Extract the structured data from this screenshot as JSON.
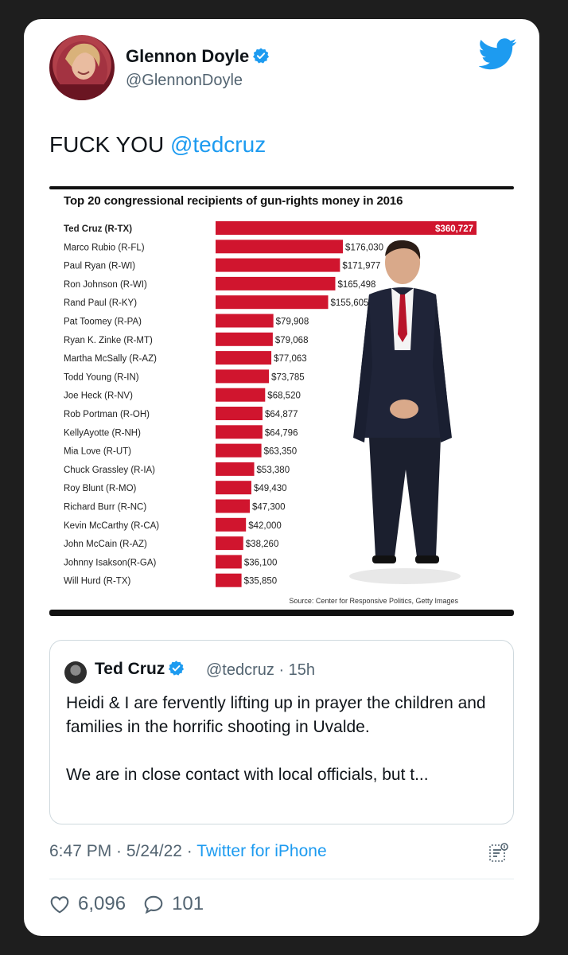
{
  "author": {
    "name": "Glennon Doyle",
    "handle": "@GlennonDoyle"
  },
  "tweet": {
    "text_prefix": "FUCK YOU ",
    "mention": "@tedcruz"
  },
  "chart_data": {
    "type": "bar",
    "orientation": "horizontal",
    "title": "Top 20 congressional recipients of gun-rights money in 2016",
    "source": "Source: Center for Responsive Politics, Getty Images",
    "categories": [
      "Ted Cruz (R-TX)",
      "Marco Rubio (R-FL)",
      "Paul Ryan (R-WI)",
      "Ron Johnson (R-WI)",
      "Rand Paul (R-KY)",
      "Pat Toomey (R-PA)",
      "Ryan K. Zinke (R-MT)",
      "Martha McSally (R-AZ)",
      "Todd Young (R-IN)",
      "Joe Heck (R-NV)",
      "Rob Portman (R-OH)",
      "KellyAyotte (R-NH)",
      "Mia Love (R-UT)",
      "Chuck Grassley (R-IA)",
      "Roy Blunt (R-MO)",
      "Richard Burr (R-NC)",
      "Kevin McCarthy (R-CA)",
      "John McCain (R-AZ)",
      "Johnny Isakson(R-GA)",
      "Will Hurd (R-TX)"
    ],
    "values": [
      360727,
      176030,
      171977,
      165498,
      155605,
      79908,
      79068,
      77063,
      73785,
      68520,
      64877,
      64796,
      63350,
      53380,
      49430,
      47300,
      42000,
      38260,
      36100,
      35850
    ],
    "value_labels": [
      "$360,727",
      "$176,030",
      "$171,977",
      "$165,498",
      "$155,605",
      "$79,908",
      "$79,068",
      "$77,063",
      "$73,785",
      "$68,520",
      "$64,877",
      "$64,796",
      "$63,350",
      "$53,380",
      "$49,430",
      "$47,300",
      "$42,000",
      "$38,260",
      "$36,100",
      "$35,850"
    ],
    "bar_color": "#d0152e",
    "xlim": [
      0,
      360727
    ]
  },
  "quoted": {
    "name": "Ted Cruz",
    "handle_time": "@tedcruz · 15h",
    "paragraph1": "Heidi & I are fervently lifting up in prayer the children and families in the horrific shooting in Uvalde.",
    "paragraph2": "We are in close contact with local officials, but t..."
  },
  "meta": {
    "time_date": "6:47 PM · 5/24/22 · ",
    "source": "Twitter for iPhone"
  },
  "stats": {
    "likes": "6,096",
    "replies": "101"
  },
  "colors": {
    "accent": "#1d9bf0",
    "text": "#0f1419",
    "muted": "#536471"
  }
}
